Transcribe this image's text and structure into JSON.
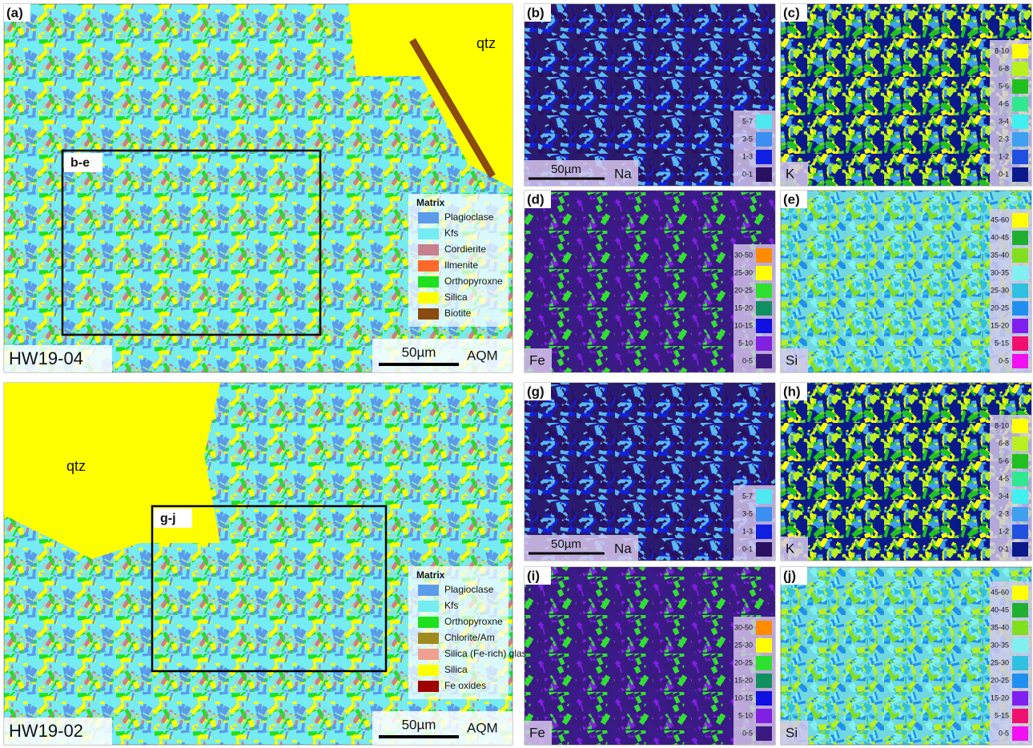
{
  "panels": [
    {
      "label": "(a)",
      "sample": "HW19-04",
      "scale": "50µm",
      "method": "AQM",
      "mineral": "qtz",
      "inset": "b-e",
      "legend": {
        "title": "Matrix",
        "items": [
          {
            "name": "Plagioclase",
            "color": "#5b9bea"
          },
          {
            "name": "Kfs",
            "color": "#74ecf2"
          },
          {
            "name": "Cordierite",
            "color": "#c9808e"
          },
          {
            "name": "Ilmenite",
            "color": "#ff6a2a"
          },
          {
            "name": "Orthopyroxne",
            "color": "#1fe01f"
          },
          {
            "name": "Silica",
            "color": "#ffff00"
          },
          {
            "name": "Biotite",
            "color": "#8a4a10"
          }
        ]
      }
    },
    {
      "label": "(b)",
      "element": "Na",
      "scale": "50µm",
      "legend": [
        {
          "name": "5-7",
          "color": "#4ee8f0"
        },
        {
          "name": "3-5",
          "color": "#3a8ff0"
        },
        {
          "name": "1-3",
          "color": "#1020e0"
        },
        {
          "name": "0-1",
          "color": "#2a1060"
        }
      ]
    },
    {
      "label": "(c)",
      "element": "K",
      "legend": [
        {
          "name": "8-10",
          "color": "#ffff00"
        },
        {
          "name": "6-8",
          "color": "#b8f020"
        },
        {
          "name": "5-6",
          "color": "#20c020"
        },
        {
          "name": "4-5",
          "color": "#30e890"
        },
        {
          "name": "3-4",
          "color": "#40f0f0"
        },
        {
          "name": "2-3",
          "color": "#40a0f0"
        },
        {
          "name": "1-2",
          "color": "#2050e0"
        },
        {
          "name": "0-1",
          "color": "#0a1a8a"
        }
      ]
    },
    {
      "label": "(d)",
      "element": "Fe",
      "legend": [
        {
          "name": "30-50",
          "color": "#ff8c00"
        },
        {
          "name": "25-30",
          "color": "#ffff00"
        },
        {
          "name": "20-25",
          "color": "#30e030"
        },
        {
          "name": "15-20",
          "color": "#109060"
        },
        {
          "name": "10-15",
          "color": "#1010e0"
        },
        {
          "name": "5-10",
          "color": "#8020e0"
        },
        {
          "name": "0-5",
          "color": "#3a1a80"
        }
      ]
    },
    {
      "label": "(e)",
      "element": "Si",
      "legend": [
        {
          "name": "45-60",
          "color": "#ffff00"
        },
        {
          "name": "40-45",
          "color": "#20b030"
        },
        {
          "name": "35-40",
          "color": "#80e020"
        },
        {
          "name": "30-35",
          "color": "#80f0f0"
        },
        {
          "name": "25-30",
          "color": "#30c0e0"
        },
        {
          "name": "20-25",
          "color": "#2090f0"
        },
        {
          "name": "15-20",
          "color": "#8020f0"
        },
        {
          "name": "5-15",
          "color": "#f01070"
        },
        {
          "name": "0-5",
          "color": "#f010f0"
        }
      ]
    },
    {
      "label": "(f)",
      "sample": "HW19-02",
      "scale": "50µm",
      "method": "AQM",
      "mineral": "qtz",
      "inset": "g-j",
      "legend": {
        "title": "Matrix",
        "items": [
          {
            "name": "Plagioclase",
            "color": "#5b9bea"
          },
          {
            "name": "Kfs",
            "color": "#74ecf2"
          },
          {
            "name": "Orthopyroxne",
            "color": "#1fe01f"
          },
          {
            "name": "Chlorite/Am",
            "color": "#a08a20"
          },
          {
            "name": "Silica (Fe-rich) glass",
            "color": "#f0a090"
          },
          {
            "name": "Silica",
            "color": "#ffff00"
          },
          {
            "name": "Fe oxides",
            "color": "#a00000"
          }
        ]
      }
    },
    {
      "label": "(g)",
      "element": "Na",
      "scale": "50µm",
      "legend": [
        {
          "name": "5-7",
          "color": "#4ee8f0"
        },
        {
          "name": "3-5",
          "color": "#3a8ff0"
        },
        {
          "name": "1-3",
          "color": "#1020e0"
        },
        {
          "name": "0-1",
          "color": "#2a1060"
        }
      ]
    },
    {
      "label": "(h)",
      "element": "K",
      "legend": [
        {
          "name": "8-10",
          "color": "#ffff00"
        },
        {
          "name": "6-8",
          "color": "#b8f020"
        },
        {
          "name": "5-6",
          "color": "#20c020"
        },
        {
          "name": "4-5",
          "color": "#30e890"
        },
        {
          "name": "3-4",
          "color": "#40f0f0"
        },
        {
          "name": "2-3",
          "color": "#40a0f0"
        },
        {
          "name": "1-2",
          "color": "#2050e0"
        },
        {
          "name": "0-1",
          "color": "#0a1a8a"
        }
      ]
    },
    {
      "label": "(i)",
      "element": "Fe",
      "legend": [
        {
          "name": "30-50",
          "color": "#ff8c00"
        },
        {
          "name": "25-30",
          "color": "#ffff00"
        },
        {
          "name": "20-25",
          "color": "#30e030"
        },
        {
          "name": "15-20",
          "color": "#109060"
        },
        {
          "name": "10-15",
          "color": "#1010e0"
        },
        {
          "name": "5-10",
          "color": "#8020e0"
        },
        {
          "name": "0-5",
          "color": "#3a1a80"
        }
      ]
    },
    {
      "label": "(j)",
      "element": "Si",
      "legend": [
        {
          "name": "45-60",
          "color": "#ffff00"
        },
        {
          "name": "40-45",
          "color": "#20b030"
        },
        {
          "name": "35-40",
          "color": "#80e020"
        },
        {
          "name": "30-35",
          "color": "#80f0f0"
        },
        {
          "name": "25-30",
          "color": "#30c0e0"
        },
        {
          "name": "20-25",
          "color": "#2090f0"
        },
        {
          "name": "15-20",
          "color": "#8020f0"
        },
        {
          "name": "5-15",
          "color": "#f01070"
        },
        {
          "name": "0-5",
          "color": "#f010f0"
        }
      ]
    }
  ]
}
